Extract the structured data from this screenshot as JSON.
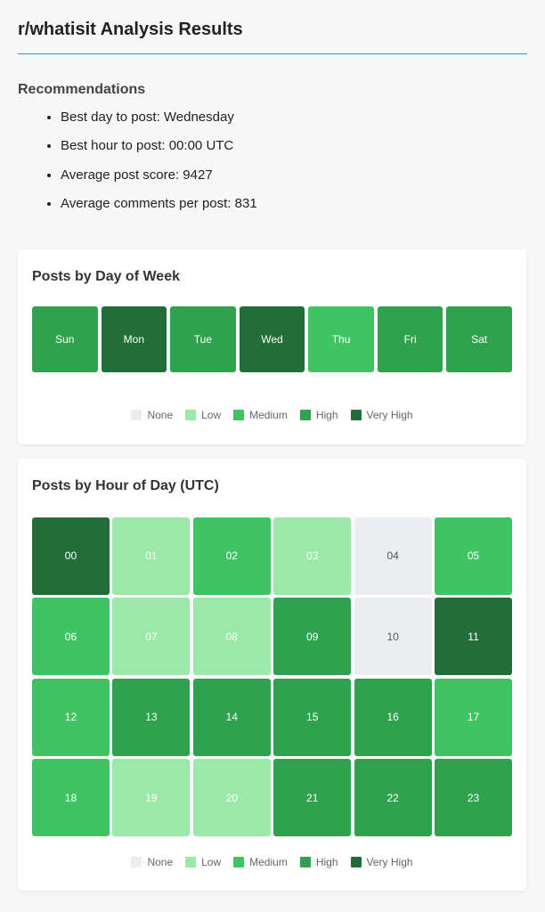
{
  "page": {
    "title": "r/whatisit Analysis Results"
  },
  "recommendations": {
    "heading": "Recommendations",
    "items": [
      "Best day to post: Wednesday",
      "Best hour to post: 00:00 UTC",
      "Average post score: 9427",
      "Average comments per post: 831"
    ]
  },
  "colors": {
    "none": "#ebedf0",
    "low": "#9be9a8",
    "medium": "#40c463",
    "high": "#30a14e",
    "very_high": "#216e39",
    "title_rule": "#3a93c9"
  },
  "legend": {
    "none": "None",
    "low": "Low",
    "medium": "Medium",
    "high": "High",
    "very_high": "Very High"
  },
  "day_chart": {
    "title": "Posts by Day of Week",
    "cells": [
      {
        "label": "Sun",
        "level": "high"
      },
      {
        "label": "Mon",
        "level": "very_high"
      },
      {
        "label": "Tue",
        "level": "high"
      },
      {
        "label": "Wed",
        "level": "very_high"
      },
      {
        "label": "Thu",
        "level": "medium"
      },
      {
        "label": "Fri",
        "level": "high"
      },
      {
        "label": "Sat",
        "level": "high"
      }
    ]
  },
  "hour_chart": {
    "title": "Posts by Hour of Day (UTC)",
    "cells": [
      {
        "label": "00",
        "level": "very_high"
      },
      {
        "label": "01",
        "level": "low"
      },
      {
        "label": "02",
        "level": "medium"
      },
      {
        "label": "03",
        "level": "low"
      },
      {
        "label": "04",
        "level": "none"
      },
      {
        "label": "05",
        "level": "medium"
      },
      {
        "label": "06",
        "level": "medium"
      },
      {
        "label": "07",
        "level": "low"
      },
      {
        "label": "08",
        "level": "low"
      },
      {
        "label": "09",
        "level": "high"
      },
      {
        "label": "10",
        "level": "none"
      },
      {
        "label": "11",
        "level": "very_high"
      },
      {
        "label": "12",
        "level": "medium"
      },
      {
        "label": "13",
        "level": "high"
      },
      {
        "label": "14",
        "level": "high"
      },
      {
        "label": "15",
        "level": "high"
      },
      {
        "label": "16",
        "level": "high"
      },
      {
        "label": "17",
        "level": "medium"
      },
      {
        "label": "18",
        "level": "medium"
      },
      {
        "label": "19",
        "level": "low"
      },
      {
        "label": "20",
        "level": "low"
      },
      {
        "label": "21",
        "level": "high"
      },
      {
        "label": "22",
        "level": "high"
      },
      {
        "label": "23",
        "level": "high"
      }
    ]
  }
}
